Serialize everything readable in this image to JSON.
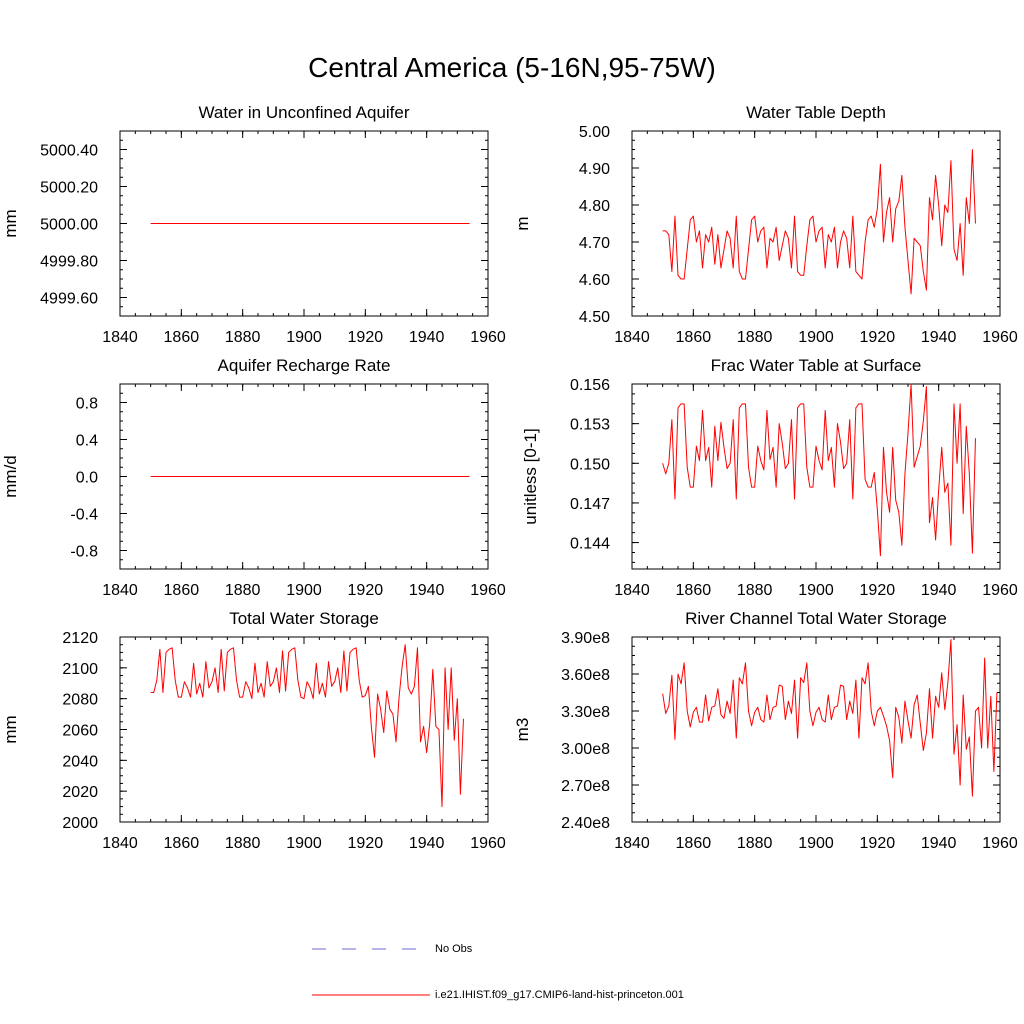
{
  "title": "Central America (5-16N,95-75W)",
  "colors": {
    "model": "#ff0000",
    "obs": "#6b6bd6",
    "axis": "#000000"
  },
  "legend": {
    "entries": [
      {
        "label": "No Obs",
        "style": "dashed",
        "color": "#6b6bd6"
      },
      {
        "label": "i.e21.IHIST.f09_g17.CMIP6-land-hist-princeton.001",
        "style": "solid",
        "color": "#ff0000"
      }
    ]
  },
  "chart_data": [
    {
      "type": "line",
      "title": "Water in Unconfined Aquifer",
      "ylabel": "mm",
      "xlim": [
        1840,
        1960
      ],
      "ylim": [
        4999.5,
        5000.5
      ],
      "xticks": [
        1840,
        1860,
        1880,
        1900,
        1920,
        1940,
        1960
      ],
      "yticks": [
        4999.6,
        4999.8,
        5000.0,
        5000.2,
        5000.4
      ],
      "ytick_labels": [
        "4999.60",
        "4999.80",
        "5000.00",
        "5000.20",
        "5000.40"
      ],
      "series": [
        {
          "values": [
            5000.0,
            5000.0,
            5000.0,
            5000.0,
            5000.0,
            5000.0,
            5000.0,
            5000.0,
            5000.0,
            5000.0,
            5000.0,
            5000.0,
            5000.0,
            5000.0,
            5000.0,
            5000.0,
            5000.0,
            5000.0,
            5000.0,
            5000.0,
            5000.0,
            5000.0,
            5000.0,
            5000.0,
            5000.0,
            5000.0,
            5000.0,
            5000.0,
            5000.0,
            5000.0,
            5000.0,
            5000.0,
            5000.0,
            5000.0,
            5000.0,
            5000.0,
            5000.0,
            5000.0,
            5000.0,
            5000.0,
            5000.0,
            5000.0,
            5000.0,
            5000.0,
            5000.0,
            5000.0,
            5000.0,
            5000.0,
            5000.0,
            5000.0,
            5000.0,
            5000.0,
            5000.0,
            5000.0,
            5000.0,
            5000.0,
            5000.0,
            5000.0,
            5000.0,
            5000.0,
            5000.0,
            5000.0,
            5000.0,
            5000.0,
            5000.0,
            5000.0,
            5000.0,
            5000.0,
            5000.0,
            5000.0,
            5000.0,
            5000.0,
            5000.0,
            5000.0,
            5000.0,
            5000.0,
            5000.0,
            5000.0,
            5000.0,
            5000.0,
            5000.0,
            5000.0,
            5000.0,
            5000.0,
            5000.0,
            5000.0,
            5000.0,
            5000.0,
            5000.0,
            5000.0,
            5000.0,
            5000.0,
            5000.0,
            5000.0,
            5000.0,
            5000.0,
            5000.0,
            5000.0,
            5000.0,
            5000.0,
            5000.0,
            5000.0,
            5000.0,
            5000.0,
            5000.0
          ]
        }
      ]
    },
    {
      "type": "line",
      "title": "Water Table Depth",
      "ylabel": "m",
      "xlim": [
        1840,
        1960
      ],
      "ylim": [
        4.5,
        5.0
      ],
      "xticks": [
        1840,
        1860,
        1880,
        1900,
        1920,
        1940,
        1960
      ],
      "yticks": [
        4.5,
        4.6,
        4.7,
        4.8,
        4.9,
        5.0
      ],
      "ytick_labels": [
        "4.50",
        "4.60",
        "4.70",
        "4.80",
        "4.90",
        "5.00"
      ],
      "series": [
        {
          "values": [
            4.73,
            4.73,
            4.72,
            4.62,
            4.77,
            4.61,
            4.6,
            4.6,
            4.68,
            4.76,
            4.77,
            4.7,
            4.73,
            4.63,
            4.72,
            4.7,
            4.74,
            4.64,
            4.72,
            4.63,
            4.68,
            4.73,
            4.71,
            4.63,
            4.77,
            4.62,
            4.6,
            4.6,
            4.68,
            4.76,
            4.77,
            4.7,
            4.73,
            4.74,
            4.63,
            4.71,
            4.7,
            4.74,
            4.65,
            4.69,
            4.73,
            4.71,
            4.63,
            4.77,
            4.62,
            4.61,
            4.61,
            4.69,
            4.76,
            4.77,
            4.7,
            4.73,
            4.74,
            4.63,
            4.72,
            4.7,
            4.74,
            4.63,
            4.7,
            4.73,
            4.71,
            4.63,
            4.77,
            4.62,
            4.61,
            4.6,
            4.7,
            4.76,
            4.77,
            4.74,
            4.79,
            4.91,
            4.7,
            4.78,
            4.82,
            4.7,
            4.79,
            4.81,
            4.88,
            4.74,
            4.65,
            4.56,
            4.71,
            4.7,
            4.69,
            4.62,
            4.57,
            4.82,
            4.76,
            4.88,
            4.8,
            4.69,
            4.8,
            4.78,
            4.92,
            4.68,
            4.65,
            4.75,
            4.61,
            4.82,
            4.75,
            4.95,
            4.75
          ]
        }
      ]
    },
    {
      "type": "line",
      "title": "Aquifer Recharge Rate",
      "ylabel": "mm/d",
      "xlim": [
        1840,
        1960
      ],
      "ylim": [
        -1.0,
        1.0
      ],
      "xticks": [
        1840,
        1860,
        1880,
        1900,
        1920,
        1940,
        1960
      ],
      "yticks": [
        -0.8,
        -0.4,
        0.0,
        0.4,
        0.8
      ],
      "ytick_labels": [
        "-0.8",
        "-0.4",
        "0.0",
        "0.4",
        "0.8"
      ],
      "series": [
        {
          "values": [
            0.0,
            0.0,
            0.0,
            0.0,
            0.0,
            0.0,
            0.0,
            0.0,
            0.0,
            0.0,
            0.0,
            0.0,
            0.0,
            0.0,
            0.0,
            0.0,
            0.0,
            0.0,
            0.0,
            0.0,
            0.0,
            0.0,
            0.0,
            0.0,
            0.0,
            0.0,
            0.0,
            0.0,
            0.0,
            0.0,
            0.0,
            0.0,
            0.0,
            0.0,
            0.0,
            0.0,
            0.0,
            0.0,
            0.0,
            0.0,
            0.0,
            0.0,
            0.0,
            0.0,
            0.0,
            0.0,
            0.0,
            0.0,
            0.0,
            0.0,
            0.0,
            0.0,
            0.0,
            0.0,
            0.0,
            0.0,
            0.0,
            0.0,
            0.0,
            0.0,
            0.0,
            0.0,
            0.0,
            0.0,
            0.0,
            0.0,
            0.0,
            0.0,
            0.0,
            0.0,
            0.0,
            0.0,
            0.0,
            0.0,
            0.0,
            0.0,
            0.0,
            0.0,
            0.0,
            0.0,
            0.0,
            0.0,
            0.0,
            0.0,
            0.0,
            0.0,
            0.0,
            0.0,
            0.0,
            0.0,
            0.0,
            0.0,
            0.0,
            0.0,
            0.0,
            0.0,
            0.0,
            0.0,
            0.0,
            0.0,
            0.0,
            0.0,
            0.0,
            0.0,
            0.0
          ]
        }
      ]
    },
    {
      "type": "line",
      "title": "Frac Water Table at Surface",
      "ylabel": "unitless [0-1]",
      "xlim": [
        1840,
        1960
      ],
      "ylim": [
        0.142,
        0.156
      ],
      "xticks": [
        1840,
        1860,
        1880,
        1900,
        1920,
        1940,
        1960
      ],
      "yticks": [
        0.144,
        0.147,
        0.15,
        0.153,
        0.156
      ],
      "ytick_labels": [
        "0.144",
        "0.147",
        "0.150",
        "0.153",
        "0.156"
      ],
      "series": [
        {
          "values": [
            0.15,
            0.1492,
            0.15,
            0.1533,
            0.1473,
            0.1542,
            0.1545,
            0.1545,
            0.1497,
            0.1482,
            0.1482,
            0.1513,
            0.1502,
            0.154,
            0.1502,
            0.1512,
            0.1482,
            0.1528,
            0.1502,
            0.1531,
            0.1512,
            0.1496,
            0.15,
            0.1533,
            0.1473,
            0.1542,
            0.1545,
            0.1545,
            0.1497,
            0.1482,
            0.1482,
            0.1513,
            0.1502,
            0.1495,
            0.154,
            0.1503,
            0.1512,
            0.1482,
            0.153,
            0.1515,
            0.1496,
            0.15,
            0.1533,
            0.1473,
            0.1542,
            0.1545,
            0.1545,
            0.1497,
            0.1482,
            0.1482,
            0.1513,
            0.1502,
            0.1495,
            0.154,
            0.1502,
            0.1512,
            0.1482,
            0.153,
            0.1516,
            0.1496,
            0.15,
            0.1533,
            0.1473,
            0.1542,
            0.1545,
            0.1545,
            0.1488,
            0.1482,
            0.1482,
            0.1493,
            0.1465,
            0.143,
            0.1512,
            0.1478,
            0.1463,
            0.1512,
            0.1472,
            0.1463,
            0.1438,
            0.1492,
            0.1523,
            0.156,
            0.1497,
            0.1505,
            0.1513,
            0.1532,
            0.1558,
            0.1455,
            0.1474,
            0.1442,
            0.148,
            0.1512,
            0.1478,
            0.1485,
            0.1438,
            0.1545,
            0.15,
            0.1545,
            0.1462,
            0.1528,
            0.1492,
            0.1432,
            0.1519
          ]
        }
      ]
    },
    {
      "type": "line",
      "title": "Total Water Storage",
      "ylabel": "mm",
      "xlim": [
        1840,
        1960
      ],
      "ylim": [
        2000,
        2120
      ],
      "xticks": [
        1840,
        1860,
        1880,
        1900,
        1920,
        1940,
        1960
      ],
      "yticks": [
        2000,
        2020,
        2040,
        2060,
        2080,
        2100,
        2120
      ],
      "ytick_labels": [
        "2000",
        "2020",
        "2040",
        "2060",
        "2080",
        "2100",
        "2120"
      ],
      "series": [
        {
          "values": [
            2084,
            2084,
            2092,
            2112,
            2084,
            2110,
            2112,
            2113,
            2092,
            2081,
            2081,
            2091,
            2087,
            2081,
            2103,
            2083,
            2090,
            2081,
            2104,
            2087,
            2091,
            2100,
            2084,
            2112,
            2085,
            2110,
            2112,
            2113,
            2092,
            2081,
            2081,
            2091,
            2087,
            2080,
            2103,
            2084,
            2090,
            2081,
            2104,
            2088,
            2091,
            2100,
            2084,
            2111,
            2085,
            2110,
            2112,
            2113,
            2092,
            2081,
            2080,
            2091,
            2087,
            2080,
            2103,
            2083,
            2090,
            2081,
            2104,
            2088,
            2091,
            2100,
            2084,
            2111,
            2085,
            2110,
            2112,
            2113,
            2092,
            2081,
            2082,
            2088,
            2061,
            2042,
            2083,
            2073,
            2058,
            2085,
            2073,
            2070,
            2052,
            2081,
            2101,
            2115,
            2087,
            2083,
            2088,
            2113,
            2052,
            2062,
            2045,
            2064,
            2099,
            2062,
            2060,
            2010,
            2100,
            2060,
            2100,
            2053,
            2080,
            2018,
            2067
          ]
        }
      ]
    },
    {
      "type": "line",
      "title": "River Channel Total Water Storage",
      "ylabel": "m3",
      "xlim": [
        1840,
        1960
      ],
      "ylim": [
        240000000,
        390000000
      ],
      "xticks": [
        1840,
        1860,
        1880,
        1900,
        1920,
        1940,
        1960
      ],
      "yticks": [
        240000000,
        270000000,
        300000000,
        330000000,
        360000000,
        390000000
      ],
      "ytick_labels": [
        "2.40e8",
        "2.70e8",
        "3.00e8",
        "3.30e8",
        "3.60e8",
        "3.90e8"
      ],
      "series": [
        {
          "values": [
            344000000,
            328000000,
            334000000,
            359000000,
            307000000,
            360000000,
            352000000,
            369000000,
            330000000,
            317000000,
            329000000,
            333000000,
            321000000,
            321000000,
            343000000,
            322000000,
            333000000,
            334000000,
            348000000,
            327000000,
            324000000,
            338000000,
            328000000,
            355000000,
            308000000,
            357000000,
            352000000,
            369000000,
            330000000,
            318000000,
            329000000,
            333000000,
            323000000,
            321000000,
            343000000,
            323000000,
            333000000,
            334000000,
            351000000,
            350000000,
            323000000,
            338000000,
            328000000,
            355000000,
            308000000,
            357000000,
            353000000,
            369000000,
            330000000,
            318000000,
            329000000,
            333000000,
            323000000,
            321000000,
            343000000,
            323000000,
            333000000,
            334000000,
            351000000,
            350000000,
            323000000,
            338000000,
            328000000,
            355000000,
            308000000,
            357000000,
            352000000,
            369000000,
            330000000,
            318000000,
            330000000,
            333000000,
            326000000,
            318000000,
            306000000,
            276000000,
            333000000,
            325000000,
            304000000,
            338000000,
            322000000,
            308000000,
            335000000,
            343000000,
            320000000,
            298000000,
            312000000,
            348000000,
            308000000,
            342000000,
            333000000,
            361000000,
            331000000,
            353000000,
            388000000,
            295000000,
            319000000,
            270000000,
            343000000,
            299000000,
            309000000,
            261000000,
            330000000,
            333000000,
            300000000,
            373000000,
            300000000,
            342000000,
            281000000,
            345000000
          ]
        }
      ]
    }
  ]
}
